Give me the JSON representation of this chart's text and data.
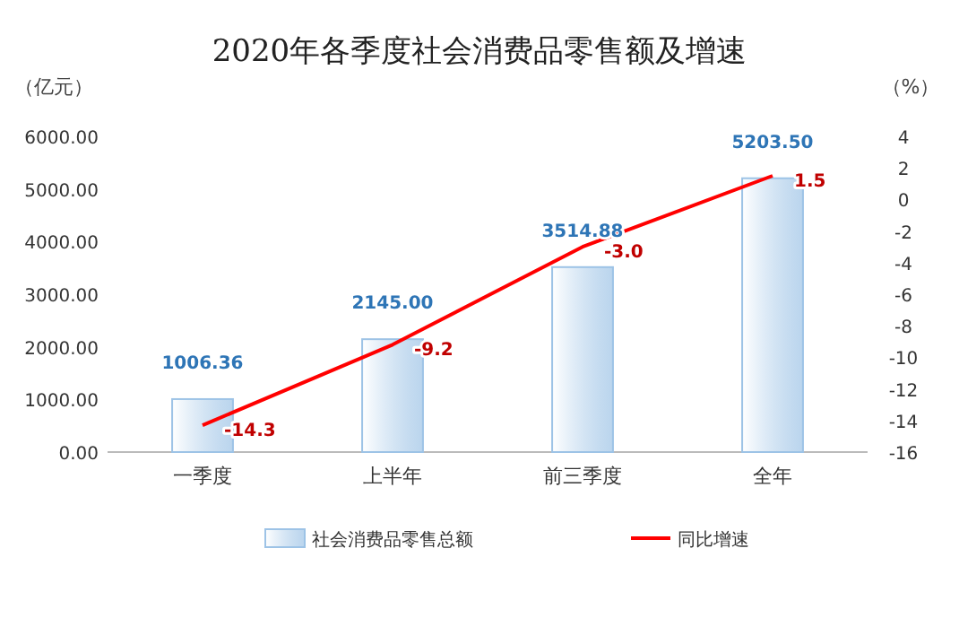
{
  "chart_data": {
    "type": "bar",
    "title": "2020年各季度社会消费品零售额及增速",
    "ylabel": "（亿元）",
    "y2label": "（%）",
    "categories": [
      "一季度",
      "上半年",
      "前三季度",
      "全年"
    ],
    "series": [
      {
        "name": "社会消费品零售总额",
        "color": "#9dc3e6",
        "values": [
          1006.36,
          2145.0,
          3514.88,
          5203.5
        ],
        "value_labels": [
          "1006.36",
          "2145.00",
          "3514.88",
          "5203.50"
        ]
      },
      {
        "name": "同比增速",
        "type": "line",
        "axis": "y2",
        "color": "#ff0000",
        "values": [
          -14.3,
          -9.2,
          -3.0,
          1.5
        ],
        "value_labels": [
          "-14.3",
          "-9.2",
          "-3.0",
          "1.5"
        ]
      }
    ],
    "ylim": [
      0,
      6000
    ],
    "yticks": [
      {
        "value": 0,
        "label": "0.00"
      },
      {
        "value": 1000,
        "label": "1000.00"
      },
      {
        "value": 2000,
        "label": "2000.00"
      },
      {
        "value": 3000,
        "label": "3000.00"
      },
      {
        "value": 4000,
        "label": "4000.00"
      },
      {
        "value": 5000,
        "label": "5000.00"
      },
      {
        "value": 6000,
        "label": "6000.00"
      }
    ],
    "y2lim": [
      -16,
      4
    ],
    "y2ticks": [
      -16,
      -14,
      -12,
      -10,
      -8,
      -6,
      -4,
      -2,
      0,
      2,
      4
    ],
    "legend": "bottom",
    "grid": false,
    "marker": "none"
  }
}
